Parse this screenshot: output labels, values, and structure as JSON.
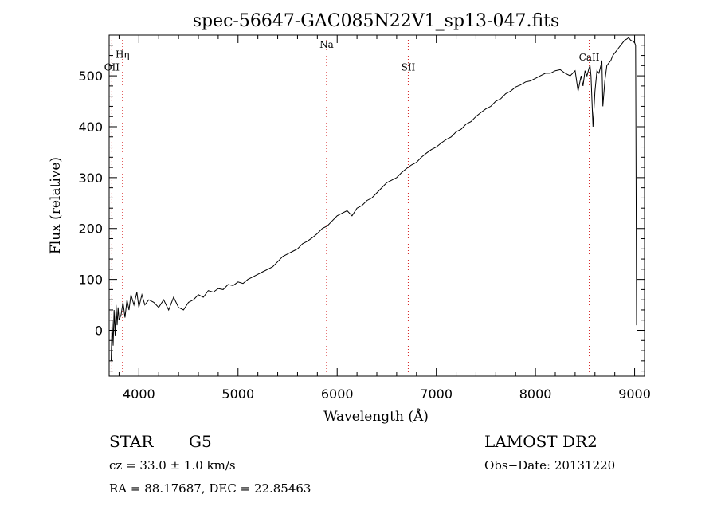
{
  "chart_data": {
    "type": "line",
    "title": "spec-56647-GAC085N22V1_sp13-047.fits",
    "xlabel": "Wavelength (Å)",
    "ylabel": "Flux (relative)",
    "xlim": [
      3700,
      9100
    ],
    "ylim": [
      -90,
      580
    ],
    "xticks": [
      4000,
      5000,
      6000,
      7000,
      8000,
      9000
    ],
    "yticks": [
      0,
      100,
      200,
      300,
      400,
      500
    ],
    "grid": false,
    "series": [
      {
        "name": "flux",
        "color": "#000000",
        "x": [
          3720,
          3730,
          3740,
          3750,
          3760,
          3770,
          3780,
          3790,
          3800,
          3820,
          3840,
          3860,
          3880,
          3900,
          3920,
          3950,
          3980,
          4000,
          4030,
          4060,
          4100,
          4150,
          4200,
          4250,
          4300,
          4350,
          4400,
          4450,
          4500,
          4550,
          4600,
          4650,
          4700,
          4750,
          4800,
          4850,
          4900,
          4950,
          5000,
          5050,
          5100,
          5150,
          5200,
          5250,
          5300,
          5350,
          5400,
          5450,
          5500,
          5550,
          5600,
          5650,
          5700,
          5750,
          5800,
          5850,
          5900,
          5950,
          6000,
          6050,
          6100,
          6150,
          6200,
          6250,
          6300,
          6350,
          6400,
          6450,
          6500,
          6550,
          6600,
          6650,
          6700,
          6750,
          6800,
          6850,
          6900,
          6950,
          7000,
          7050,
          7100,
          7150,
          7200,
          7250,
          7300,
          7350,
          7400,
          7450,
          7500,
          7550,
          7600,
          7650,
          7700,
          7750,
          7800,
          7850,
          7900,
          7950,
          8000,
          8050,
          8100,
          8150,
          8200,
          8250,
          8300,
          8350,
          8400,
          8430,
          8460,
          8480,
          8500,
          8520,
          8540,
          8550,
          8560,
          8580,
          8600,
          8620,
          8640,
          8660,
          8670,
          8680,
          8700,
          8720,
          8740,
          8760,
          8780,
          8800,
          8820,
          8840,
          8860,
          8880,
          8900,
          8920,
          8940,
          8960,
          8980,
          9000,
          9010,
          9015,
          9020
        ],
        "values": [
          -60,
          20,
          -30,
          40,
          -10,
          50,
          10,
          45,
          20,
          30,
          55,
          25,
          60,
          40,
          70,
          50,
          75,
          45,
          70,
          50,
          60,
          55,
          45,
          60,
          40,
          65,
          45,
          40,
          55,
          60,
          70,
          65,
          78,
          75,
          82,
          80,
          90,
          88,
          95,
          92,
          100,
          105,
          110,
          115,
          120,
          125,
          135,
          145,
          150,
          155,
          160,
          170,
          175,
          182,
          190,
          200,
          205,
          215,
          225,
          230,
          235,
          225,
          240,
          245,
          255,
          260,
          270,
          280,
          290,
          295,
          300,
          310,
          318,
          325,
          330,
          340,
          348,
          355,
          360,
          368,
          375,
          380,
          390,
          395,
          405,
          410,
          420,
          428,
          435,
          440,
          450,
          455,
          465,
          470,
          478,
          482,
          488,
          490,
          495,
          500,
          505,
          505,
          510,
          512,
          505,
          500,
          510,
          470,
          500,
          480,
          510,
          500,
          515,
          520,
          500,
          400,
          470,
          510,
          505,
          520,
          530,
          440,
          490,
          520,
          525,
          530,
          540,
          545,
          550,
          555,
          560,
          565,
          570,
          572,
          575,
          570,
          568,
          565,
          560,
          300,
          10
        ]
      }
    ],
    "line_markers": [
      {
        "label": "OII",
        "x": 3727,
        "label_y": 510
      },
      {
        "label": "Hη",
        "x": 3835,
        "label_y": 535
      },
      {
        "label": "Na",
        "x": 5893,
        "label_y": 555
      },
      {
        "label": "SII",
        "x": 6717,
        "label_y": 510
      },
      {
        "label": "CaII",
        "x": 8542,
        "label_y": 530
      }
    ]
  },
  "footer": {
    "class_text": "STAR",
    "subclass_text": "G5",
    "cz_text": "cz =  33.0 ± 1.0 km/s",
    "coords_text": "RA =  88.17687, DEC =  22.85463",
    "survey_text": "LAMOST DR2",
    "obs_date_text": "Obs−Date: 20131220"
  }
}
